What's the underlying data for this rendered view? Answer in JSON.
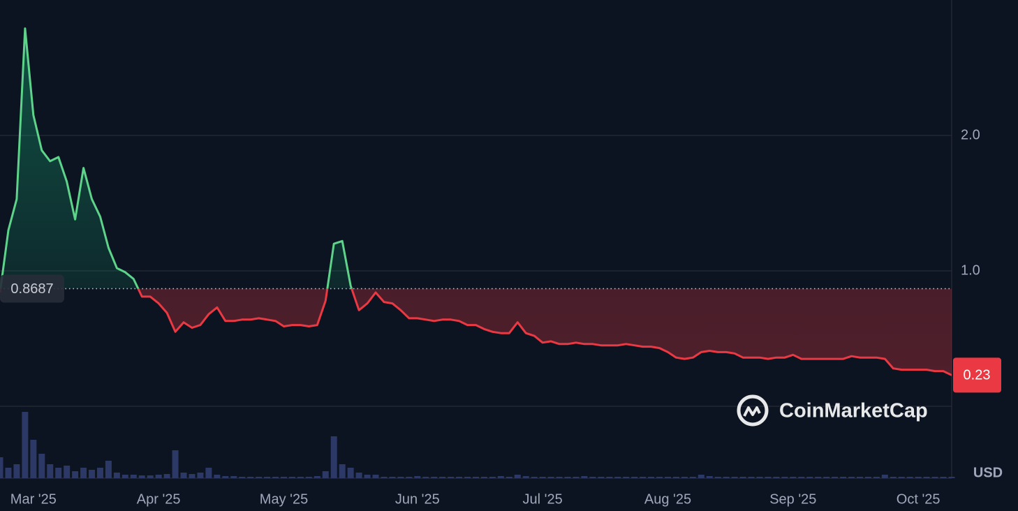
{
  "chart_data": {
    "type": "line",
    "currency": "USD",
    "watermark": "CoinMarketCap",
    "baseline": 0.8687,
    "last_value": 0.23,
    "up_color": "#5ed38a",
    "down_color": "#ea3943",
    "volume_color": "#2c3866",
    "ylim": [
      0,
      3
    ],
    "yticks": [
      {
        "value": 1,
        "label": "1.0"
      },
      {
        "value": 2,
        "label": "2.0"
      }
    ],
    "grid": true,
    "volume_ylim": [
      0,
      100
    ],
    "categories": [
      null,
      null,
      null,
      null,
      "Mar '25",
      null,
      null,
      null,
      null,
      null,
      null,
      null,
      null,
      null,
      null,
      null,
      null,
      null,
      null,
      "Apr '25",
      null,
      null,
      null,
      null,
      null,
      null,
      null,
      null,
      null,
      null,
      null,
      null,
      null,
      null,
      "May '25",
      null,
      null,
      null,
      null,
      null,
      null,
      null,
      null,
      null,
      null,
      null,
      null,
      null,
      null,
      null,
      "Jun '25",
      null,
      null,
      null,
      null,
      null,
      null,
      null,
      null,
      null,
      null,
      null,
      null,
      null,
      null,
      "Jul '25",
      null,
      null,
      null,
      null,
      null,
      null,
      null,
      null,
      null,
      null,
      null,
      null,
      null,
      null,
      "Aug '25",
      null,
      null,
      null,
      null,
      null,
      null,
      null,
      null,
      null,
      null,
      null,
      null,
      null,
      null,
      "Sep '25",
      null,
      null,
      null,
      null,
      null,
      null,
      null,
      null,
      null,
      null,
      null,
      null,
      null,
      null,
      "Oct '25",
      null,
      null,
      null,
      null
    ],
    "values": [
      0.84,
      1.3,
      1.53,
      2.79,
      2.15,
      1.89,
      1.81,
      1.84,
      1.66,
      1.38,
      1.76,
      1.53,
      1.4,
      1.17,
      1.02,
      0.99,
      0.94,
      0.81,
      0.81,
      0.76,
      0.69,
      0.55,
      0.62,
      0.58,
      0.6,
      0.68,
      0.73,
      0.63,
      0.63,
      0.64,
      0.64,
      0.65,
      0.64,
      0.63,
      0.59,
      0.6,
      0.6,
      0.59,
      0.6,
      0.78,
      1.2,
      1.22,
      0.89,
      0.71,
      0.76,
      0.84,
      0.77,
      0.76,
      0.71,
      0.65,
      0.65,
      0.64,
      0.63,
      0.64,
      0.64,
      0.63,
      0.6,
      0.6,
      0.57,
      0.55,
      0.54,
      0.54,
      0.62,
      0.54,
      0.52,
      0.47,
      0.48,
      0.46,
      0.46,
      0.47,
      0.46,
      0.46,
      0.45,
      0.45,
      0.45,
      0.46,
      0.45,
      0.44,
      0.44,
      0.43,
      0.4,
      0.36,
      0.35,
      0.36,
      0.4,
      0.41,
      0.4,
      0.4,
      0.39,
      0.36,
      0.36,
      0.36,
      0.35,
      0.36,
      0.36,
      0.38,
      0.35,
      0.35,
      0.35,
      0.35,
      0.35,
      0.35,
      0.37,
      0.36,
      0.36,
      0.36,
      0.35,
      0.28,
      0.27,
      0.27,
      0.27,
      0.27,
      0.26,
      0.26,
      0.23
    ],
    "volume": [
      30,
      15,
      20,
      95,
      55,
      35,
      20,
      15,
      18,
      10,
      15,
      12,
      15,
      25,
      8,
      5,
      5,
      4,
      4,
      5,
      6,
      40,
      8,
      6,
      8,
      15,
      5,
      3,
      3,
      2,
      2,
      2,
      2,
      2,
      2,
      2,
      2,
      2,
      3,
      10,
      60,
      20,
      15,
      8,
      5,
      5,
      2,
      2,
      2,
      2,
      3,
      2,
      2,
      2,
      2,
      2,
      2,
      2,
      2,
      2,
      3,
      2,
      5,
      3,
      2,
      2,
      2,
      2,
      2,
      2,
      3,
      2,
      2,
      2,
      2,
      2,
      2,
      2,
      2,
      2,
      2,
      2,
      2,
      2,
      5,
      3,
      2,
      2,
      2,
      2,
      2,
      2,
      2,
      2,
      2,
      2,
      2,
      2,
      2,
      2,
      2,
      2,
      2,
      2,
      2,
      2,
      5,
      2,
      2,
      2,
      2,
      2,
      2,
      2,
      2
    ]
  }
}
